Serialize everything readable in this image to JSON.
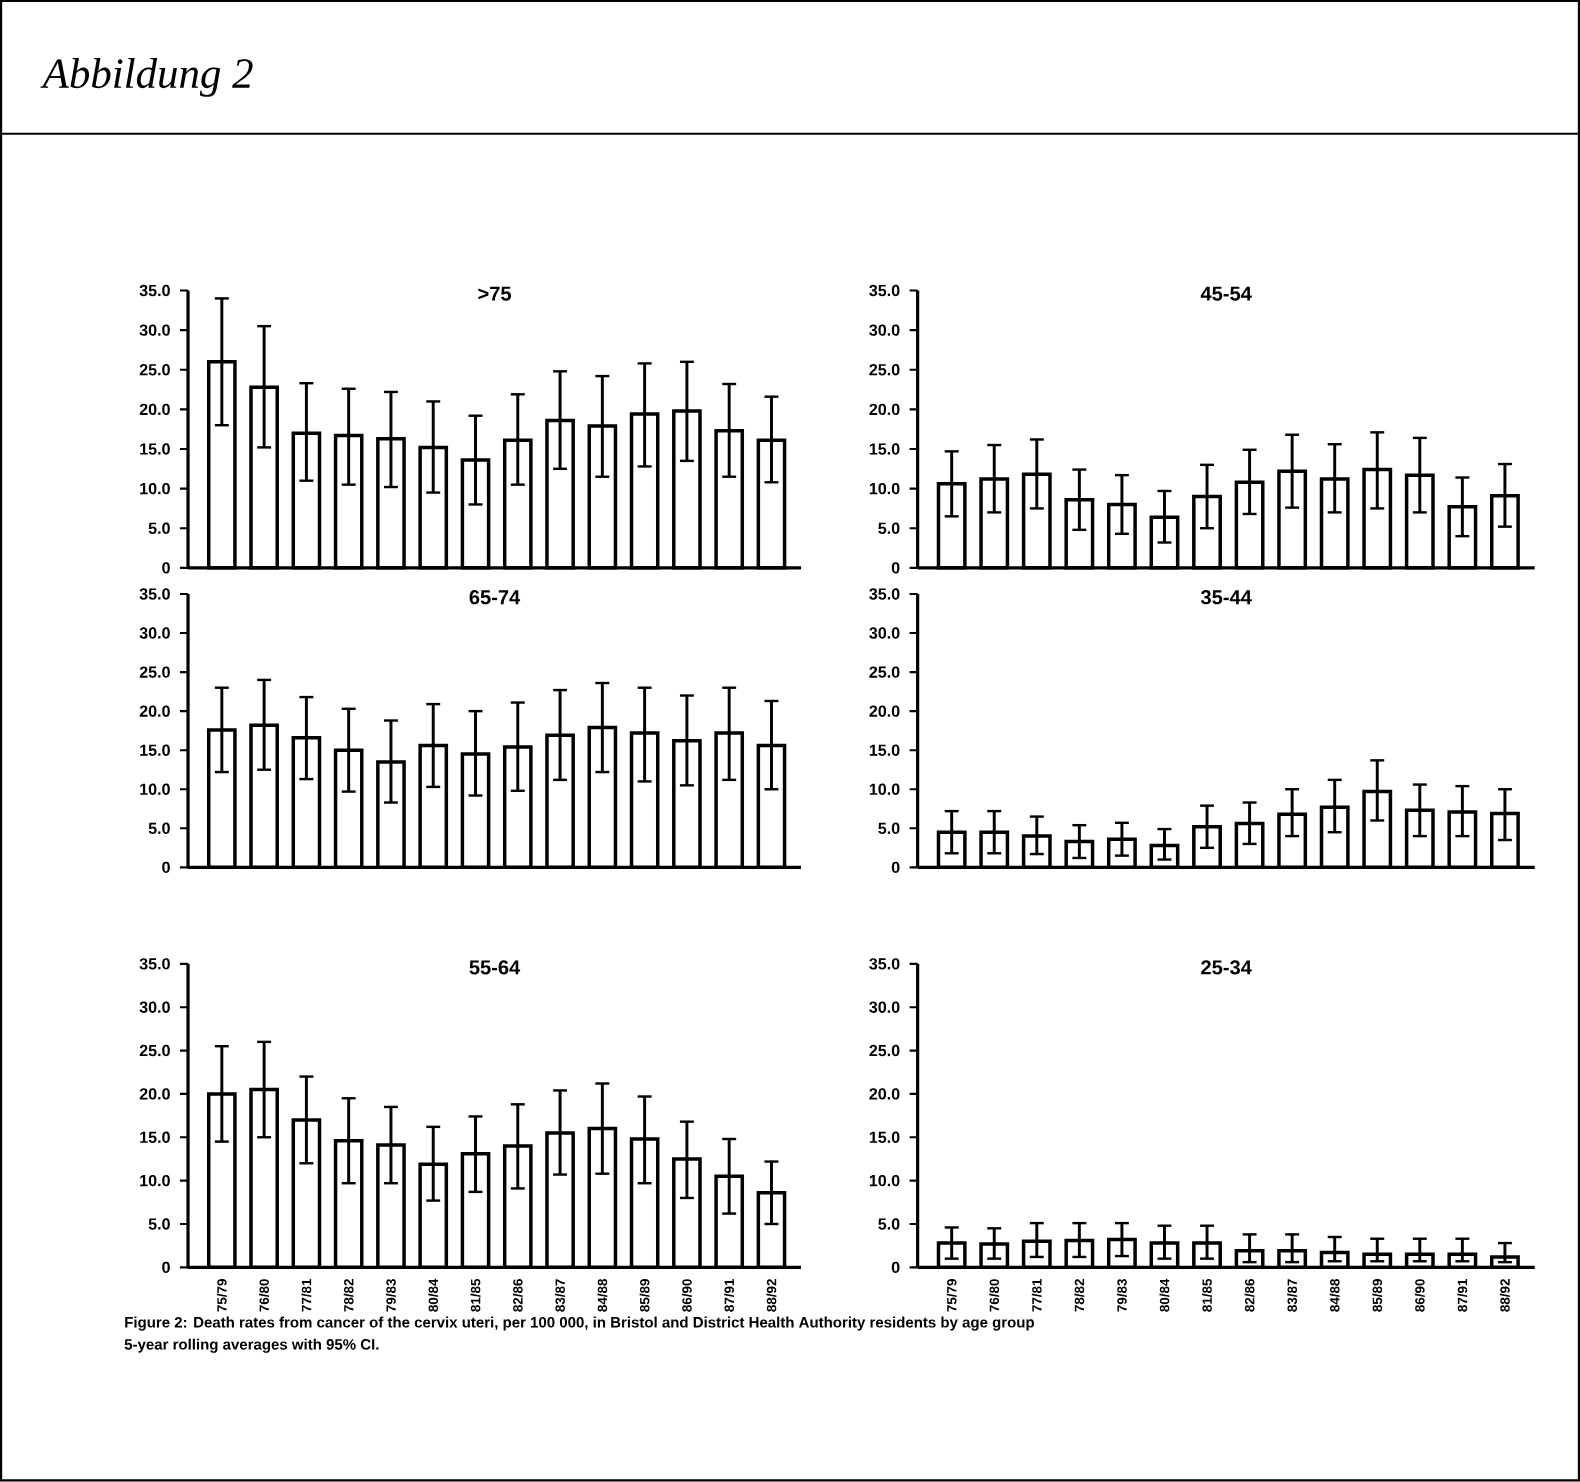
{
  "chart_data": [
    {
      "type": "bar",
      "title": ">75",
      "annotations": [
        "Abbildung 2"
      ],
      "tick_labels": "y",
      "color": "#ffffff",
      "categories": [
        null,
        null,
        null,
        null,
        null,
        null,
        null,
        null,
        null,
        null,
        null,
        null,
        null,
        null
      ],
      "values": [
        26.0,
        22.8,
        17.0,
        16.7,
        16.3,
        15.2,
        13.6,
        16.1,
        18.6,
        17.9,
        19.4,
        19.8,
        17.3,
        16.1
      ],
      "errors": [
        [
          18.0,
          34.0
        ],
        [
          15.2,
          30.5
        ],
        [
          11.0,
          23.3
        ],
        [
          10.5,
          22.6
        ],
        [
          10.2,
          22.2
        ],
        [
          9.5,
          21.0
        ],
        [
          8.0,
          19.2
        ],
        [
          10.5,
          21.9
        ],
        [
          12.5,
          24.8
        ],
        [
          11.5,
          24.2
        ],
        [
          12.8,
          25.8
        ],
        [
          13.5,
          26.0
        ],
        [
          11.5,
          23.2
        ],
        [
          10.8,
          21.6
        ]
      ],
      "ylim": [
        0,
        35
      ],
      "yticks": [
        0,
        {
          "value": 5,
          "label": "5.0"
        },
        {
          "value": 10,
          "label": "10.0"
        },
        {
          "value": 15,
          "label": "15.0"
        },
        {
          "value": 20,
          "label": "20.0"
        },
        {
          "value": 25,
          "label": "25.0"
        },
        {
          "value": 30,
          "label": "30.0"
        },
        {
          "value": 35,
          "label": "35.0"
        }
      ]
    },
    {
      "type": "bar",
      "title": "45-54",
      "tick_labels": "y",
      "color": "#ffffff",
      "categories": [
        null,
        null,
        null,
        null,
        null,
        null,
        null,
        null,
        null,
        null,
        null,
        null,
        null,
        null
      ],
      "values": [
        10.6,
        11.2,
        11.8,
        8.6,
        8.0,
        6.4,
        9.0,
        10.8,
        12.2,
        11.2,
        12.4,
        11.7,
        7.7,
        9.1
      ],
      "errors": [
        [
          6.5,
          14.7
        ],
        [
          7.0,
          15.5
        ],
        [
          7.5,
          16.2
        ],
        [
          4.8,
          12.4
        ],
        [
          4.3,
          11.7
        ],
        [
          3.2,
          9.7
        ],
        [
          5.0,
          13.0
        ],
        [
          6.8,
          14.9
        ],
        [
          7.6,
          16.8
        ],
        [
          7.0,
          15.6
        ],
        [
          7.5,
          17.1
        ],
        [
          7.0,
          16.4
        ],
        [
          4.0,
          11.4
        ],
        [
          5.2,
          13.1
        ]
      ],
      "ylim": [
        0,
        35
      ],
      "yticks": [
        0,
        {
          "value": 5,
          "label": "5.0"
        },
        {
          "value": 10,
          "label": "10.0"
        },
        {
          "value": 15,
          "label": "15.0"
        },
        {
          "value": 20,
          "label": "20.0"
        },
        {
          "value": 25,
          "label": "25.0"
        },
        {
          "value": 30,
          "label": "30.0"
        },
        {
          "value": 35,
          "label": "35.0"
        }
      ]
    },
    {
      "type": "bar",
      "title": "65-74",
      "tick_labels": "y",
      "color": "#ffffff",
      "categories": [
        null,
        null,
        null,
        null,
        null,
        null,
        null,
        null,
        null,
        null,
        null,
        null,
        null,
        null
      ],
      "values": [
        17.6,
        18.2,
        16.6,
        15.0,
        13.5,
        15.6,
        14.5,
        15.4,
        16.9,
        17.9,
        17.2,
        16.2,
        17.2,
        15.6
      ],
      "errors": [
        [
          12.2,
          23.0
        ],
        [
          12.5,
          24.0
        ],
        [
          11.3,
          21.8
        ],
        [
          9.7,
          20.3
        ],
        [
          8.3,
          18.8
        ],
        [
          10.3,
          20.9
        ],
        [
          9.2,
          20.0
        ],
        [
          9.8,
          21.1
        ],
        [
          11.2,
          22.7
        ],
        [
          12.2,
          23.6
        ],
        [
          11.0,
          23.0
        ],
        [
          10.5,
          22.0
        ],
        [
          11.2,
          23.0
        ],
        [
          10.0,
          21.3
        ]
      ],
      "ylim": [
        0,
        35
      ],
      "yticks": [
        0,
        {
          "value": 5,
          "label": "5.0"
        },
        {
          "value": 10,
          "label": "10.0"
        },
        {
          "value": 15,
          "label": "15.0"
        },
        {
          "value": 20,
          "label": "20.0"
        },
        {
          "value": 25,
          "label": "25.0"
        },
        {
          "value": 30,
          "label": "30.0"
        },
        {
          "value": 35,
          "label": "35.0"
        }
      ]
    },
    {
      "type": "bar",
      "title": "35-44",
      "tick_labels": "y",
      "color": "#ffffff",
      "categories": [
        null,
        null,
        null,
        null,
        null,
        null,
        null,
        null,
        null,
        null,
        null,
        null,
        null,
        null
      ],
      "values": [
        4.5,
        4.5,
        4.0,
        3.3,
        3.6,
        2.8,
        5.2,
        5.6,
        6.8,
        7.7,
        9.7,
        7.3,
        7.1,
        6.9
      ],
      "errors": [
        [
          1.8,
          7.2
        ],
        [
          1.8,
          7.2
        ],
        [
          1.7,
          6.5
        ],
        [
          1.2,
          5.4
        ],
        [
          1.5,
          5.7
        ],
        [
          1.0,
          4.9
        ],
        [
          2.5,
          7.9
        ],
        [
          3.0,
          8.3
        ],
        [
          4.0,
          10.0
        ],
        [
          4.5,
          11.2
        ],
        [
          6.0,
          13.7
        ],
        [
          4.0,
          10.6
        ],
        [
          4.0,
          10.4
        ],
        [
          3.5,
          10.0
        ]
      ],
      "ylim": [
        0,
        35
      ],
      "yticks": [
        0,
        {
          "value": 5,
          "label": "5.0"
        },
        {
          "value": 10,
          "label": "10.0"
        },
        {
          "value": 15,
          "label": "15.0"
        },
        {
          "value": 20,
          "label": "20.0"
        },
        {
          "value": 25,
          "label": "25.0"
        },
        {
          "value": 30,
          "label": "30.0"
        },
        {
          "value": 35,
          "label": "35.0"
        }
      ]
    },
    {
      "type": "bar",
      "title": "55-64",
      "color": "#ffffff",
      "categories": [
        "75/79",
        "76/80",
        "77/81",
        "78/82",
        "79/83",
        "80/84",
        "81/85",
        "82/86",
        "83/87",
        "84/88",
        "85/89",
        "86/90",
        "87/91",
        "88/92"
      ],
      "values": [
        20.0,
        20.5,
        17.0,
        14.6,
        14.1,
        11.9,
        13.1,
        14.0,
        15.5,
        16.0,
        14.8,
        12.5,
        10.5,
        8.6
      ],
      "errors": [
        [
          14.5,
          25.5
        ],
        [
          15.0,
          26.0
        ],
        [
          12.0,
          22.0
        ],
        [
          9.7,
          19.5
        ],
        [
          9.7,
          18.5
        ],
        [
          7.7,
          16.2
        ],
        [
          8.7,
          17.4
        ],
        [
          9.1,
          18.8
        ],
        [
          10.7,
          20.4
        ],
        [
          10.8,
          21.2
        ],
        [
          9.7,
          19.7
        ],
        [
          8.0,
          16.8
        ],
        [
          6.2,
          14.8
        ],
        [
          5.0,
          12.2
        ]
      ],
      "ylim": [
        0,
        35
      ],
      "yticks": [
        0,
        {
          "value": 5,
          "label": "5.0"
        },
        {
          "value": 10,
          "label": "10.0"
        },
        {
          "value": 15,
          "label": "15.0"
        },
        {
          "value": 20,
          "label": "20.0"
        },
        {
          "value": 25,
          "label": "25.0"
        },
        {
          "value": 30,
          "label": "30.0"
        },
        {
          "value": 35,
          "label": "35.0"
        }
      ]
    },
    {
      "type": "bar",
      "title": "25-34",
      "color": "#ffffff",
      "annotations": [
        "Figure 2: Death rates from cancer of the cervix uteri, per 100 000, in Bristol and District Health Authority residents by age group",
        "5-year rolling averages with 95% CI."
      ],
      "categories": [
        "75/79",
        "76/80",
        "77/81",
        "78/82",
        "79/83",
        "80/84",
        "81/85",
        "82/86",
        "83/87",
        "84/88",
        "85/89",
        "86/90",
        "87/91",
        "88/92"
      ],
      "values": [
        2.8,
        2.7,
        3.0,
        3.1,
        3.2,
        2.8,
        2.8,
        1.9,
        1.9,
        1.7,
        1.5,
        1.5,
        1.5,
        1.2
      ],
      "errors": [
        [
          1.0,
          4.6
        ],
        [
          1.0,
          4.5
        ],
        [
          1.2,
          5.1
        ],
        [
          1.2,
          5.1
        ],
        [
          1.3,
          5.1
        ],
        [
          1.0,
          4.8
        ],
        [
          1.0,
          4.8
        ],
        [
          0.6,
          3.8
        ],
        [
          0.6,
          3.8
        ],
        [
          0.7,
          3.5
        ],
        [
          0.7,
          3.3
        ],
        [
          0.7,
          3.3
        ],
        [
          0.7,
          3.3
        ],
        [
          0.6,
          2.8
        ]
      ],
      "ylim": [
        0,
        35
      ],
      "yticks": [
        0,
        {
          "value": 5,
          "label": "5.0"
        },
        {
          "value": 10,
          "label": "10.0"
        },
        {
          "value": 15,
          "label": "15.0"
        },
        {
          "value": 20,
          "label": "20.0"
        },
        {
          "value": 25,
          "label": "25.0"
        },
        {
          "value": 30,
          "label": "30.0"
        },
        {
          "value": 35,
          "label": "35.0"
        }
      ]
    }
  ]
}
